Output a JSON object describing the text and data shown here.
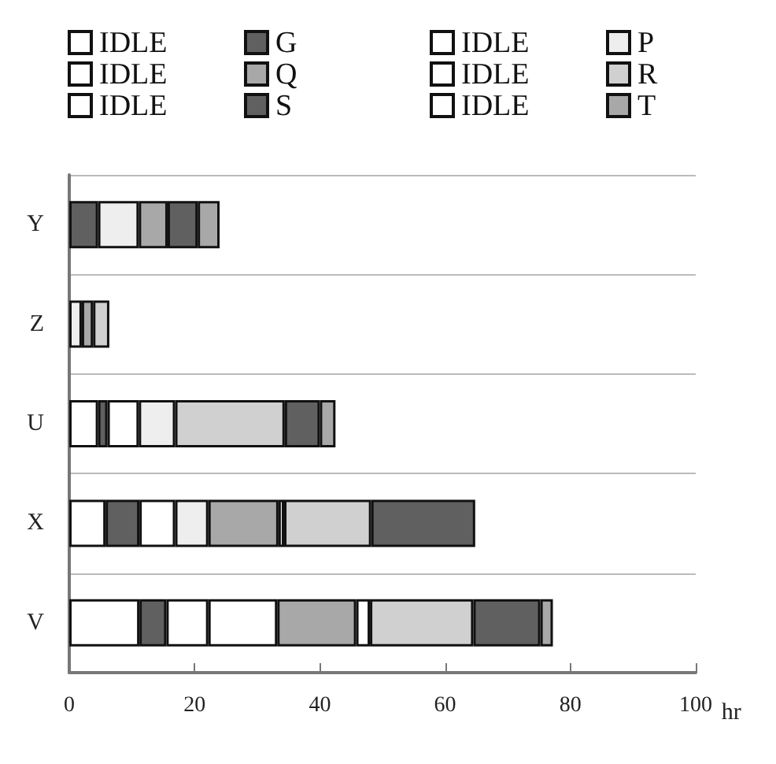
{
  "chart_data": {
    "type": "bar",
    "orientation": "horizontal",
    "stacked": true,
    "xlabel": "hr",
    "categories": [
      "Y",
      "Z",
      "U",
      "X",
      "V"
    ],
    "xlim": [
      0,
      100
    ],
    "xticks": [
      0,
      20,
      40,
      60,
      80,
      100
    ],
    "grid": "y",
    "legend": "top",
    "series": [
      {
        "name": "IDLE",
        "color": "#ffffff",
        "values": [
          null,
          null,
          4.6,
          5.8,
          11.2
        ]
      },
      {
        "name": "G",
        "color": "#606060",
        "values": [
          4.6,
          null,
          1.5,
          5.4,
          4.3
        ]
      },
      {
        "name": "IDLE",
        "color": "#ffffff",
        "values": [
          null,
          null,
          5,
          5.7,
          6.7
        ]
      },
      {
        "name": "P",
        "color": "#eeeeee",
        "values": [
          6.5,
          2,
          5.8,
          5.3,
          null
        ]
      },
      {
        "name": "IDLE",
        "color": "#ffffff",
        "values": [
          null,
          null,
          null,
          null,
          11
        ]
      },
      {
        "name": "Q",
        "color": "#a8a8a8",
        "values": [
          4.6,
          1.8,
          null,
          11.2,
          12.6
        ]
      },
      {
        "name": "IDLE",
        "color": "#ffffff",
        "values": [
          null,
          null,
          null,
          0.9,
          2.2
        ]
      },
      {
        "name": "R",
        "color": "#d0d0d0",
        "values": [
          null,
          2.6,
          17.5,
          13.9,
          16.5
        ]
      },
      {
        "name": "IDLE",
        "color": "#ffffff",
        "values": [
          null,
          null,
          null,
          null,
          null
        ]
      },
      {
        "name": "S",
        "color": "#606060",
        "values": [
          4.8,
          null,
          5.6,
          16.6,
          10.7
        ]
      },
      {
        "name": "IDLE",
        "color": "#ffffff",
        "values": [
          null,
          null,
          null,
          null,
          null
        ]
      },
      {
        "name": "T",
        "color": "#a8a8a8",
        "values": [
          3.5,
          null,
          2.5,
          null,
          2
        ]
      }
    ]
  }
}
